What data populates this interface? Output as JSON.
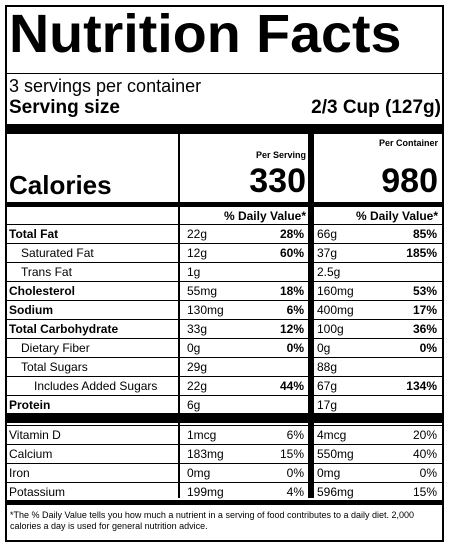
{
  "title": "Nutrition Facts",
  "servings_per_container": "3 servings per container",
  "serving_size_label": "Serving size",
  "serving_size_value": "2/3 Cup (127g)",
  "per_serving_label": "Per Serving",
  "per_container_label": "Per Container",
  "calories_label": "Calories",
  "calories_per_serving": "330",
  "calories_per_container": "980",
  "daily_value_header": "% Daily Value*",
  "nutrients": [
    {
      "name": "Total Fat",
      "bold": true,
      "indent": 0,
      "serving_amount": "22g",
      "serving_dv": "28%",
      "container_amount": "66g",
      "container_dv": "85%"
    },
    {
      "name": "Saturated Fat",
      "bold": false,
      "indent": 1,
      "serving_amount": "12g",
      "serving_dv": "60%",
      "container_amount": "37g",
      "container_dv": "185%"
    },
    {
      "name": "Trans Fat",
      "bold": false,
      "indent": 1,
      "serving_amount": "1g",
      "serving_dv": "",
      "container_amount": "2.5g",
      "container_dv": ""
    },
    {
      "name": "Cholesterol",
      "bold": true,
      "indent": 0,
      "serving_amount": "55mg",
      "serving_dv": "18%",
      "container_amount": "160mg",
      "container_dv": "53%"
    },
    {
      "name": "Sodium",
      "bold": true,
      "indent": 0,
      "serving_amount": "130mg",
      "serving_dv": "6%",
      "container_amount": "400mg",
      "container_dv": "17%"
    },
    {
      "name": "Total Carbohydrate",
      "bold": true,
      "indent": 0,
      "serving_amount": "33g",
      "serving_dv": "12%",
      "container_amount": "100g",
      "container_dv": "36%"
    },
    {
      "name": "Dietary Fiber",
      "bold": false,
      "indent": 1,
      "serving_amount": "0g",
      "serving_dv": "0%",
      "container_amount": "0g",
      "container_dv": "0%"
    },
    {
      "name": "Total Sugars",
      "bold": false,
      "indent": 1,
      "serving_amount": "29g",
      "serving_dv": "",
      "container_amount": "88g",
      "container_dv": ""
    },
    {
      "name": "Includes Added Sugars",
      "bold": false,
      "indent": 2,
      "serving_amount": "22g",
      "serving_dv": "44%",
      "container_amount": "67g",
      "container_dv": "134%"
    },
    {
      "name": "Protein",
      "bold": true,
      "indent": 0,
      "serving_amount": "6g",
      "serving_dv": "",
      "container_amount": "17g",
      "container_dv": ""
    }
  ],
  "vitamins": [
    {
      "name": "Vitamin D",
      "serving_amount": "1mcg",
      "serving_dv": "6%",
      "container_amount": "4mcg",
      "container_dv": "20%"
    },
    {
      "name": "Calcium",
      "serving_amount": "183mg",
      "serving_dv": "15%",
      "container_amount": "550mg",
      "container_dv": "40%"
    },
    {
      "name": "Iron",
      "serving_amount": "0mg",
      "serving_dv": "0%",
      "container_amount": "0mg",
      "container_dv": "0%"
    },
    {
      "name": "Potassium",
      "serving_amount": "199mg",
      "serving_dv": "4%",
      "container_amount": "596mg",
      "container_dv": "15%"
    }
  ],
  "footnote": "*The % Daily Value tells you how much a nutrient in a serving of food contributes to a daily diet. 2,000 calories a day is used for general nutrition advice."
}
